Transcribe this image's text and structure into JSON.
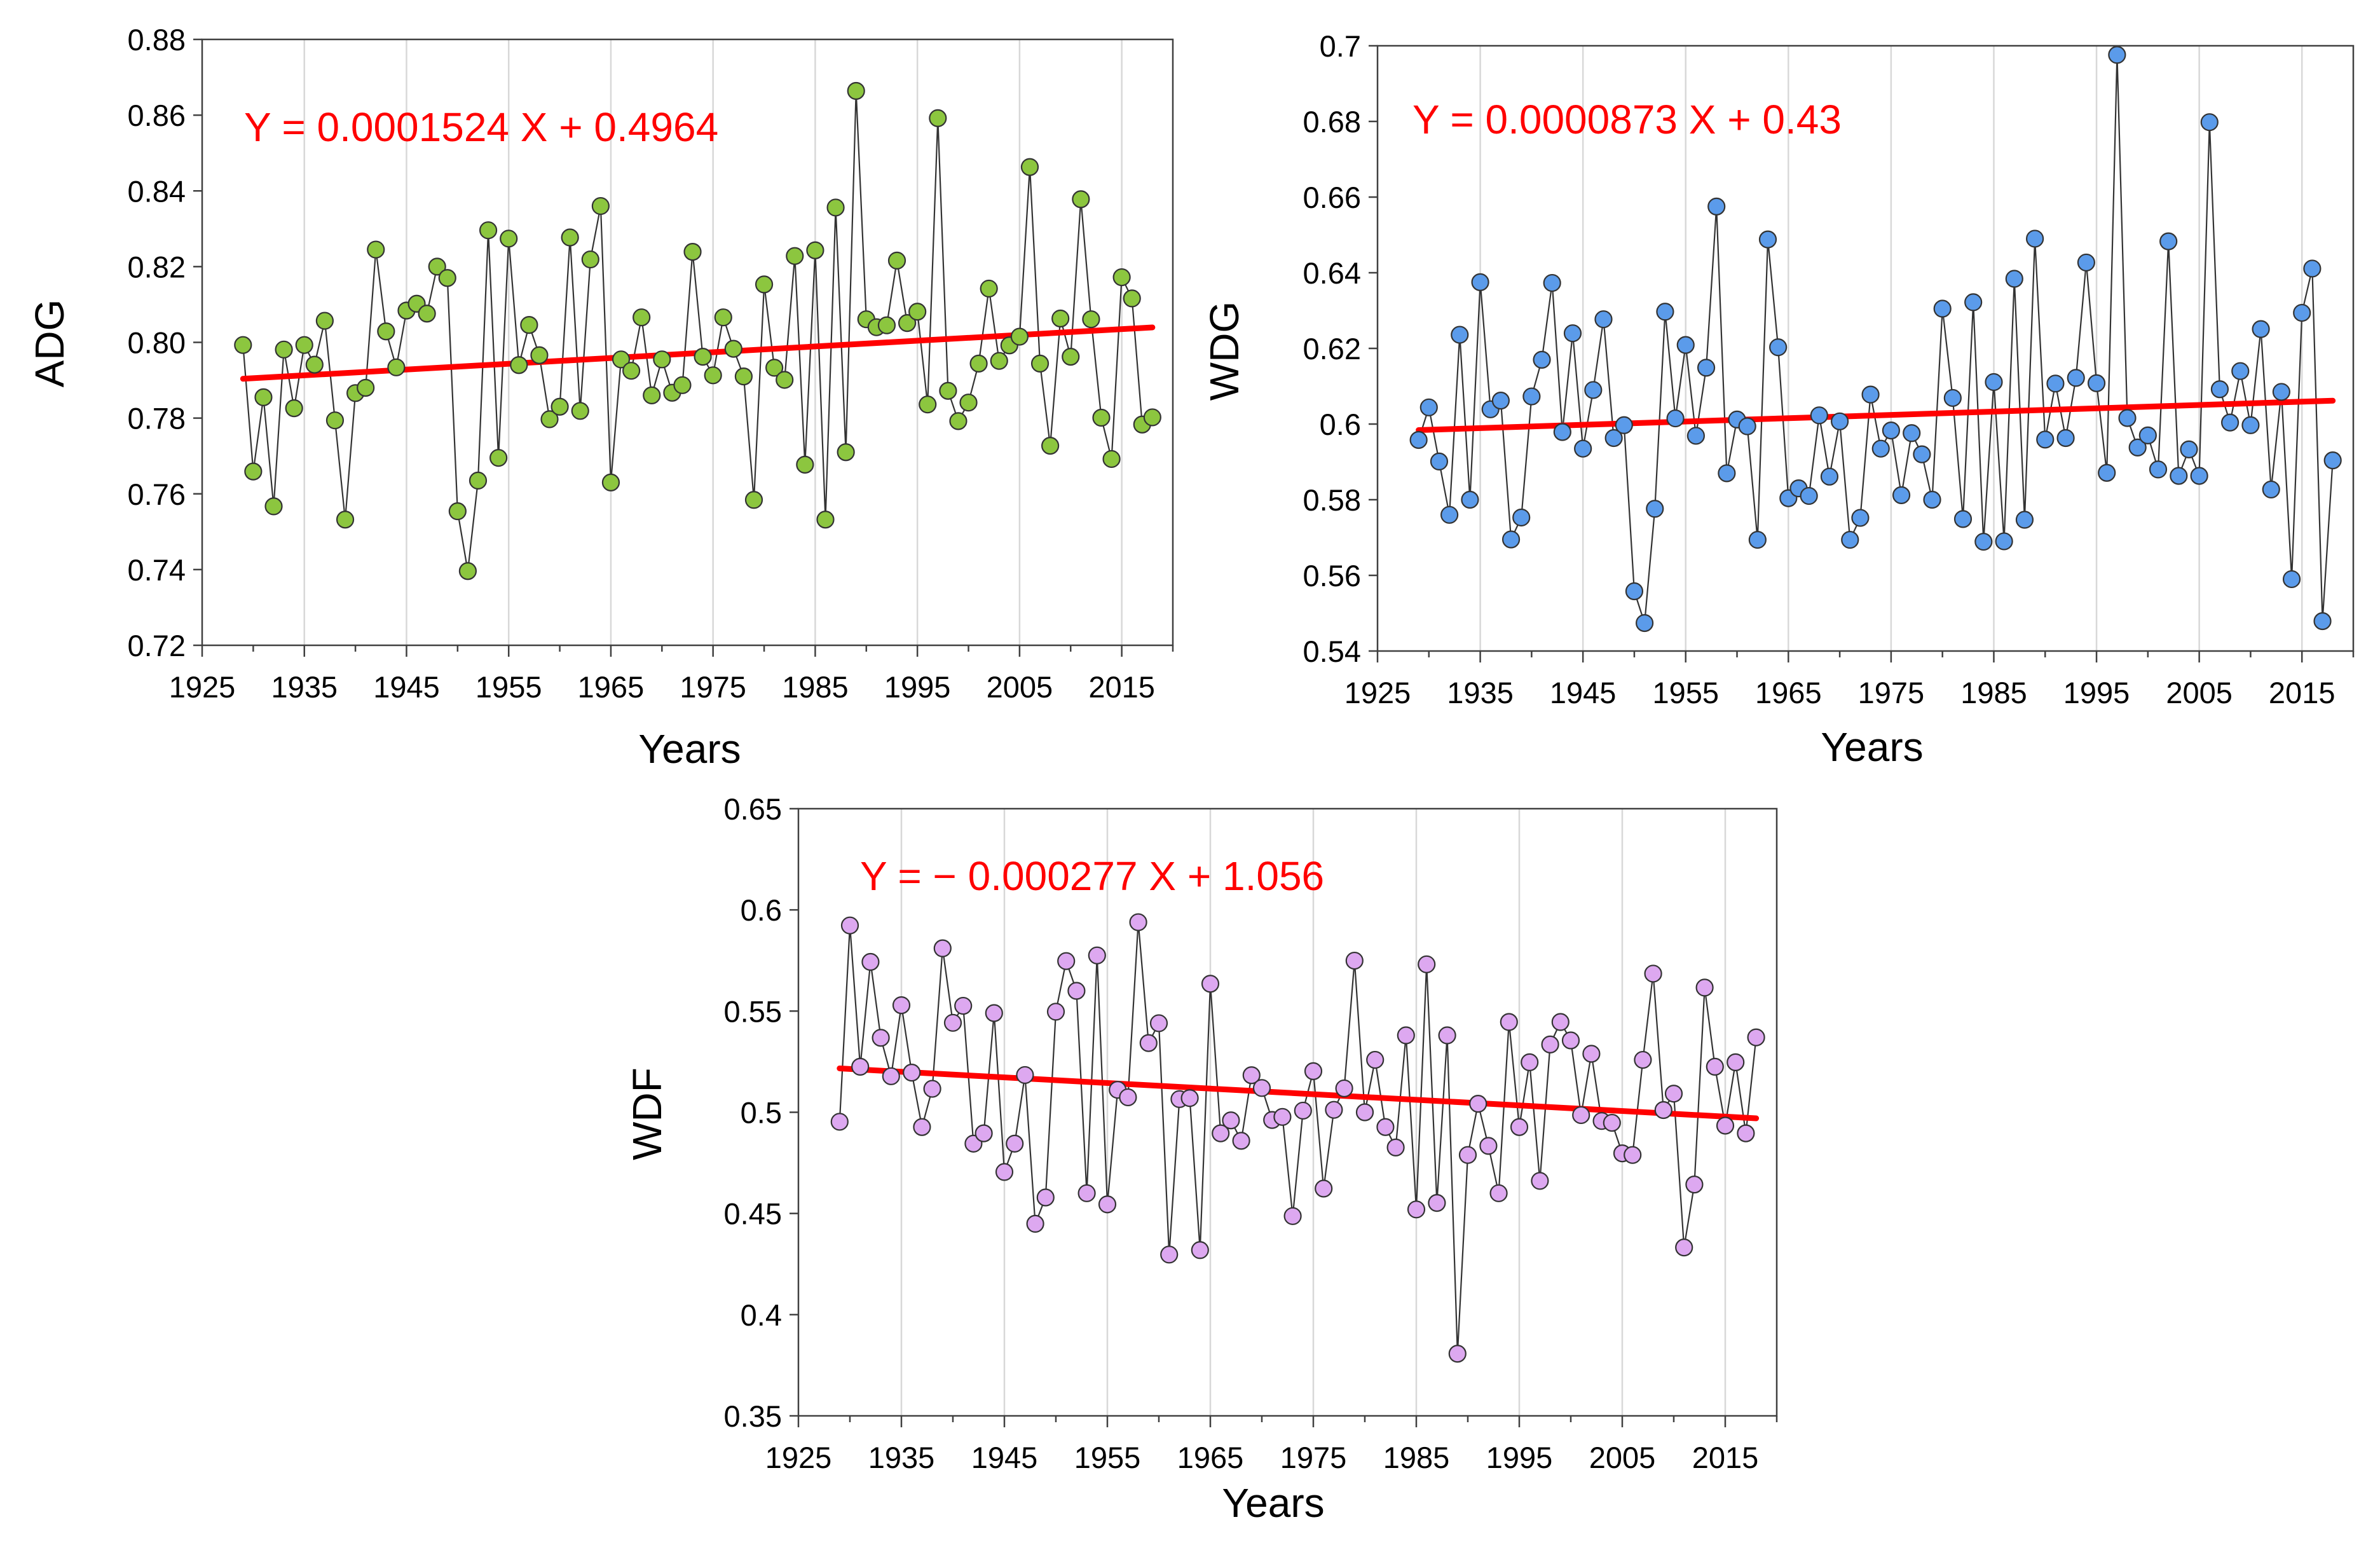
{
  "chart_data": [
    {
      "type": "scatter",
      "title": "",
      "xlabel": "Years",
      "ylabel": "ADG",
      "equation": "Y = 0.0001524 X + 0.4964",
      "xlim": [
        1925,
        2020
      ],
      "ylim": [
        0.72,
        0.88
      ],
      "x_ticks": [
        "1925",
        "1935",
        "1945",
        "1955",
        "1965",
        "1975",
        "1985",
        "1995",
        "2005",
        "2015"
      ],
      "y_ticks": [
        "0.72",
        "0.74",
        "0.76",
        "0.78",
        "0.80",
        "0.82",
        "0.84",
        "0.86",
        "0.88"
      ],
      "grid": "vertical",
      "marker_color": "#8cc63f",
      "trend_color": "#ff0000",
      "trend": {
        "slope": 0.0001524,
        "intercept": 0.4964
      },
      "x_start": 1929,
      "values": [
        0.7993,
        0.7659,
        0.7855,
        0.7567,
        0.7981,
        0.7826,
        0.7993,
        0.7941,
        0.8057,
        0.7794,
        0.7532,
        0.7866,
        0.788,
        0.8245,
        0.8029,
        0.7934,
        0.8084,
        0.8102,
        0.8076,
        0.82,
        0.817,
        0.7554,
        0.7396,
        0.7635,
        0.8296,
        0.7695,
        0.8274,
        0.794,
        0.8046,
        0.7966,
        0.7797,
        0.783,
        0.8277,
        0.7819,
        0.8219,
        0.836,
        0.763,
        0.7955,
        0.7925,
        0.8066,
        0.786,
        0.7955,
        0.7867,
        0.7887,
        0.8239,
        0.7962,
        0.7913,
        0.8066,
        0.7983,
        0.791,
        0.7584,
        0.8153,
        0.7933,
        0.7901,
        0.8228,
        0.7677,
        0.8243,
        0.7532,
        0.8356,
        0.771,
        0.8664,
        0.8061,
        0.804,
        0.8045,
        0.8216,
        0.8051,
        0.8081,
        0.7836,
        0.8592,
        0.7872,
        0.7792,
        0.7841,
        0.7944,
        0.8142,
        0.7951,
        0.7992,
        0.8015,
        0.8463,
        0.7944,
        0.7727,
        0.8063,
        0.7962,
        0.8378,
        0.8061,
        0.7801,
        0.7692,
        0.8172,
        0.8116,
        0.7783,
        0.7802
      ]
    },
    {
      "type": "scatter",
      "title": "",
      "xlabel": "Years",
      "ylabel": "WDG",
      "equation": "Y = 0.0000873 X + 0.43",
      "xlim": [
        1925,
        2020
      ],
      "ylim": [
        0.54,
        0.7
      ],
      "x_ticks": [
        "1925",
        "1935",
        "1945",
        "1955",
        "1965",
        "1975",
        "1985",
        "1995",
        "2005",
        "2015"
      ],
      "y_ticks": [
        "0.54",
        "0.56",
        "0.58",
        "0.6",
        "0.62",
        "0.64",
        "0.66",
        "0.68",
        "0.7"
      ],
      "grid": "vertical",
      "marker_color": "#5b9bea",
      "trend_color": "#ff0000",
      "trend": {
        "slope": 8.73e-05,
        "intercept": 0.43
      },
      "x_start": 1929,
      "values": [
        0.5958,
        0.6044,
        0.5901,
        0.576,
        0.6236,
        0.58,
        0.6375,
        0.6039,
        0.6062,
        0.5695,
        0.5753,
        0.6073,
        0.617,
        0.6373,
        0.5979,
        0.624,
        0.5935,
        0.609,
        0.6277,
        0.5963,
        0.5997,
        0.5558,
        0.5474,
        0.5776,
        0.6297,
        0.6015,
        0.6209,
        0.5969,
        0.6149,
        0.6575,
        0.587,
        0.6012,
        0.5994,
        0.5694,
        0.6488,
        0.6203,
        0.5804,
        0.583,
        0.581,
        0.6023,
        0.5861,
        0.6007,
        0.5694,
        0.5752,
        0.6078,
        0.5935,
        0.5983,
        0.5812,
        0.5976,
        0.592,
        0.58,
        0.6305,
        0.6069,
        0.5749,
        0.6322,
        0.5689,
        0.6111,
        0.569,
        0.6384,
        0.5747,
        0.649,
        0.5959,
        0.6107,
        0.5963,
        0.6122,
        0.6427,
        0.6108,
        0.5871,
        0.6976,
        0.6016,
        0.5938,
        0.597,
        0.588,
        0.6483,
        0.5863,
        0.5933,
        0.5863,
        0.6798,
        0.6092,
        0.6004,
        0.614,
        0.5997,
        0.6251,
        0.5827,
        0.6085,
        0.559,
        0.6294,
        0.6411,
        0.5479,
        0.5904
      ]
    },
    {
      "type": "scatter",
      "title": "",
      "xlabel": "Years",
      "ylabel": "WDF",
      "equation": "Y = − 0.000277 X + 1.056",
      "xlim": [
        1925,
        2020
      ],
      "ylim": [
        0.35,
        0.65
      ],
      "x_ticks": [
        "1925",
        "1935",
        "1945",
        "1955",
        "1965",
        "1975",
        "1985",
        "1995",
        "2005",
        "2015"
      ],
      "y_ticks": [
        "0.35",
        "0.4",
        "0.45",
        "0.5",
        "0.55",
        "0.6",
        "0.65"
      ],
      "grid": "vertical",
      "marker_color": "#dda8f0",
      "trend_color": "#ff0000",
      "trend": {
        "slope": -0.000277,
        "intercept": 1.056
      },
      "x_start": 1929,
      "values": [
        0.4953,
        0.5923,
        0.5225,
        0.5743,
        0.5368,
        0.5178,
        0.5529,
        0.5196,
        0.4927,
        0.5116,
        0.581,
        0.5442,
        0.5526,
        0.4845,
        0.4896,
        0.549,
        0.4705,
        0.4845,
        0.5184,
        0.4449,
        0.4579,
        0.5497,
        0.5747,
        0.56,
        0.46,
        0.5775,
        0.4545,
        0.5111,
        0.5074,
        0.5939,
        0.5342,
        0.544,
        0.4297,
        0.5065,
        0.507,
        0.4319,
        0.5635,
        0.4896,
        0.496,
        0.4859,
        0.5183,
        0.512,
        0.4962,
        0.4977,
        0.4487,
        0.5008,
        0.5203,
        0.4623,
        0.5012,
        0.5118,
        0.5749,
        0.5,
        0.5259,
        0.4927,
        0.4826,
        0.538,
        0.452,
        0.5731,
        0.4552,
        0.538,
        0.3807,
        0.4789,
        0.5042,
        0.4834,
        0.46,
        0.5446,
        0.4927,
        0.5247,
        0.4661,
        0.5335,
        0.5446,
        0.5355,
        0.4986,
        0.5289,
        0.4957,
        0.4948,
        0.4797,
        0.4789,
        0.5259,
        0.5685,
        0.5011,
        0.5092,
        0.4332,
        0.4643,
        0.5616,
        0.5225,
        0.4934,
        0.5247,
        0.4896,
        0.537
      ]
    }
  ]
}
